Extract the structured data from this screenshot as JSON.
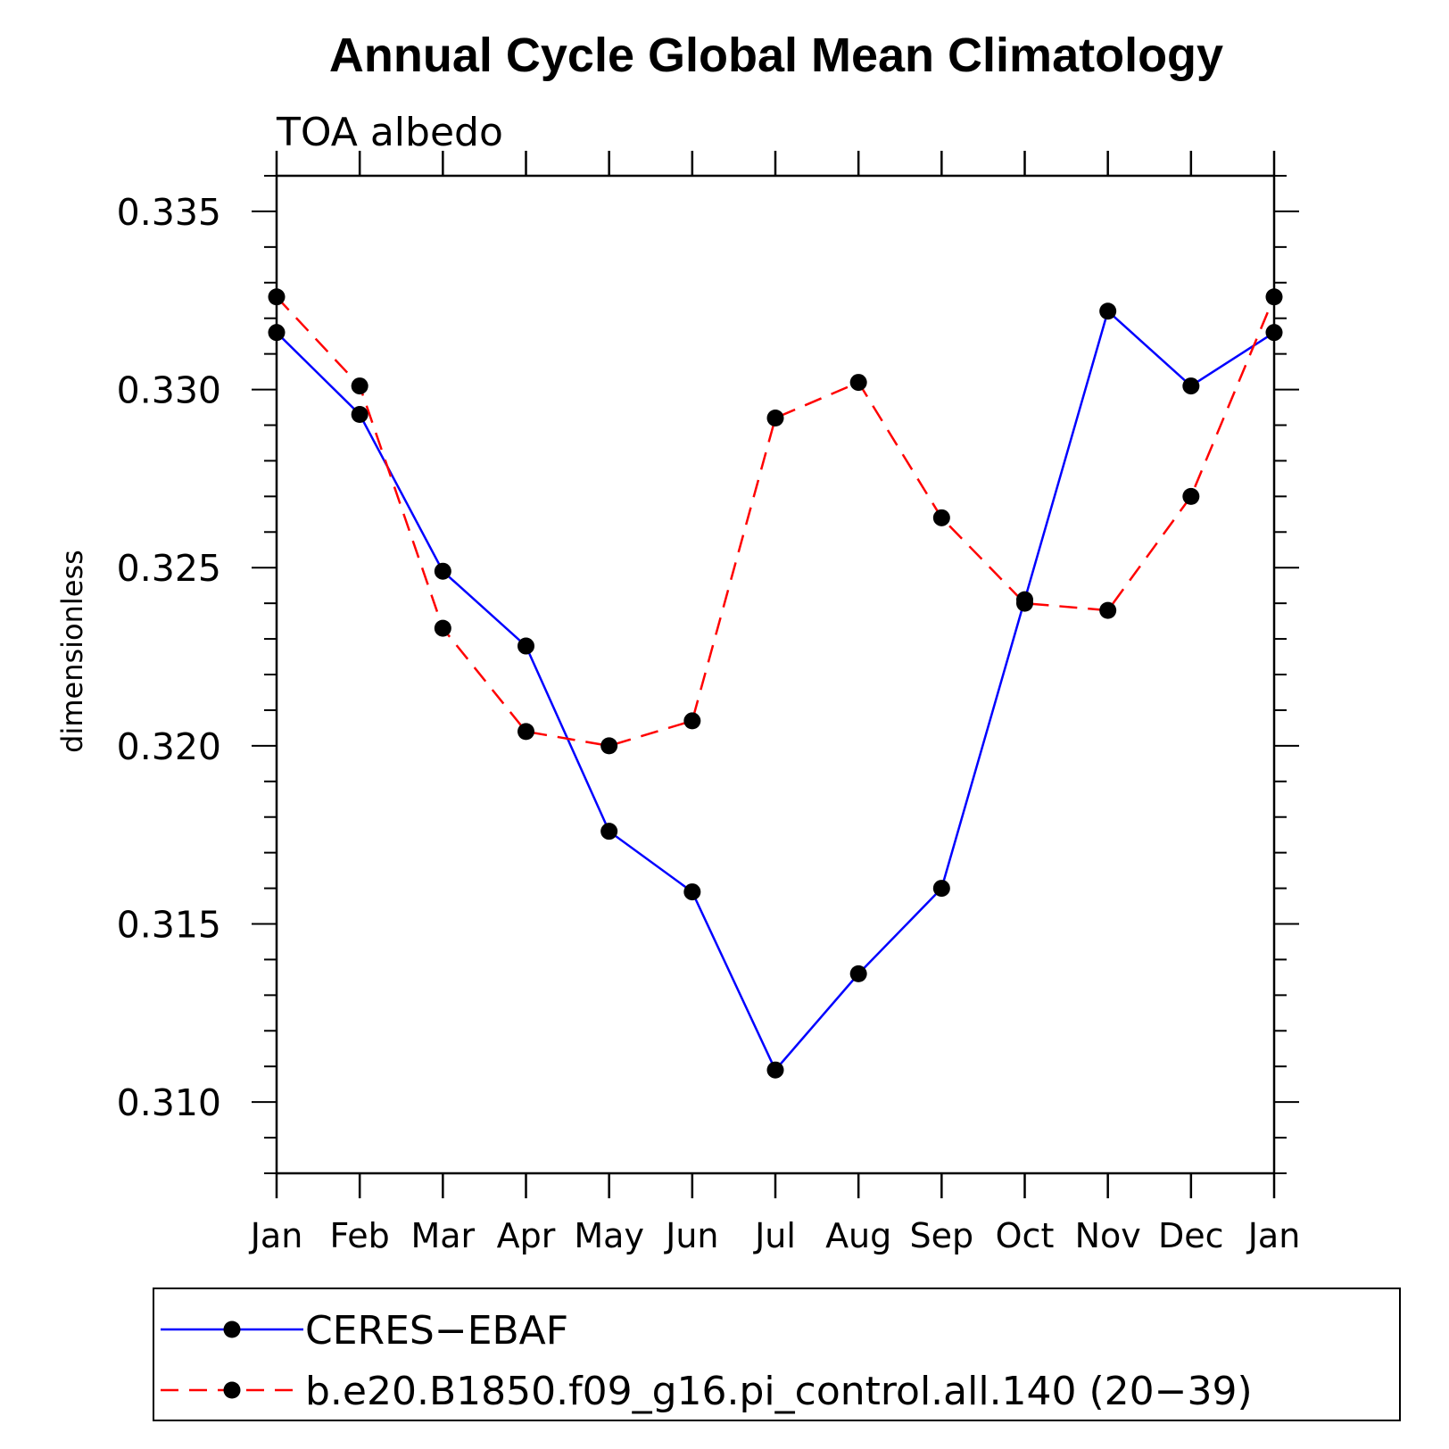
{
  "chart_data": {
    "type": "line",
    "title": "Annual Cycle Global Mean Climatology",
    "subtitle": "TOA albedo",
    "xlabel": "",
    "ylabel": "dimensionless",
    "categories": [
      "Jan",
      "Feb",
      "Mar",
      "Apr",
      "May",
      "Jun",
      "Jul",
      "Aug",
      "Sep",
      "Oct",
      "Nov",
      "Dec",
      "Jan"
    ],
    "ylim": [
      0.308,
      0.336
    ],
    "yticks": [
      "0.335",
      "0.330",
      "0.325",
      "0.320",
      "0.315",
      "0.310"
    ],
    "grid": false,
    "legend_position": "bottom",
    "series": [
      {
        "name": "CERES−EBAF",
        "color": "#0000ff",
        "line_style": "solid",
        "marker": "filled-circle",
        "values": [
          0.3316,
          0.3293,
          0.3249,
          0.3228,
          0.3176,
          0.3159,
          0.3109,
          0.3136,
          0.316,
          0.3241,
          0.3322,
          0.3301,
          0.3316
        ]
      },
      {
        "name": "b.e20.B1850.f09_g16.pi_control.all.140 (20−39)",
        "color": "#ff0000",
        "line_style": "dashed",
        "marker": "filled-circle",
        "values": [
          0.3326,
          0.3301,
          0.3233,
          0.3204,
          0.32,
          0.3207,
          0.3292,
          0.3302,
          0.3264,
          0.324,
          0.3238,
          0.327,
          0.3326
        ]
      }
    ]
  }
}
